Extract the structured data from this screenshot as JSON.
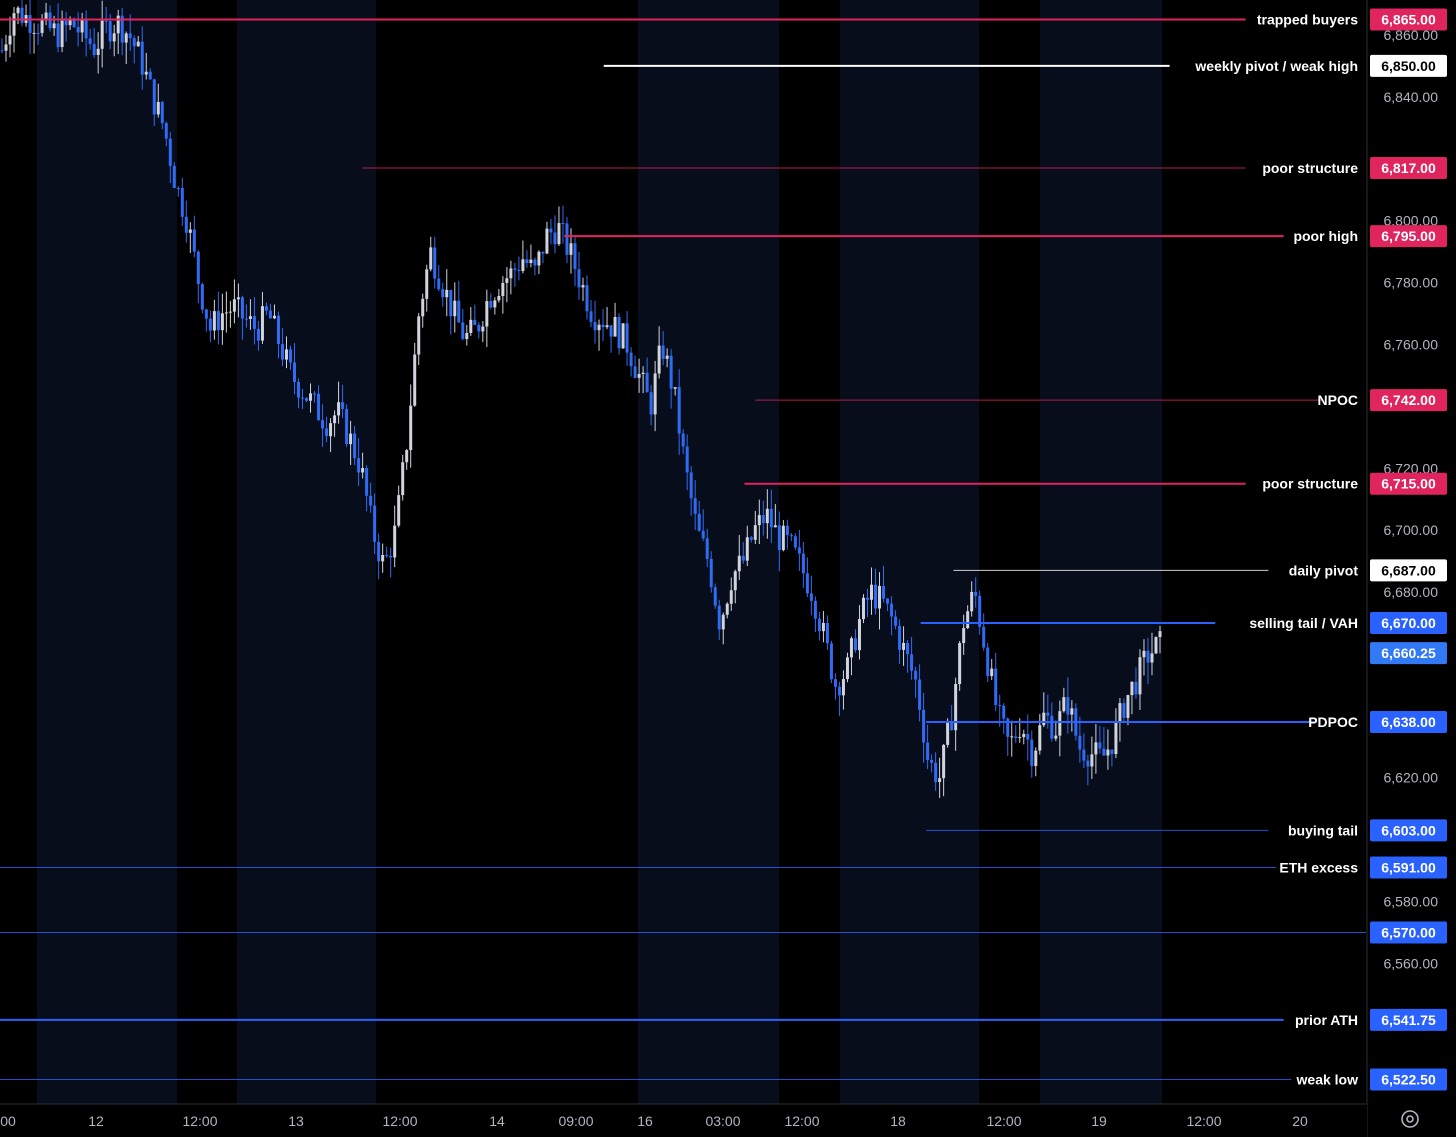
{
  "colors": {
    "background": "#000000",
    "session_band": "#070d1a",
    "up_candle": "#d1d4dc",
    "down_candle": "#2f6cf5",
    "red_level": "#e0245e",
    "blue_level": "#2962ff",
    "white_level": "#ffffff",
    "axis_text": "#b2b5be",
    "current_price": "#3179f5"
  },
  "chart_data": {
    "type": "candlestick",
    "title": "",
    "xlabel": "",
    "ylabel": "",
    "ylim": [
      6512,
      6870
    ],
    "y_ticks": [
      6860,
      6840,
      6800,
      6780,
      6760,
      6720,
      6700,
      6680,
      6620,
      6580,
      6560
    ],
    "x_ticks": [
      "00",
      "12",
      "12:00",
      "13",
      "12:00",
      "14",
      "09:00",
      "16",
      "03:00",
      "12:00",
      "18",
      "12:00",
      "19",
      "12:00",
      "20"
    ],
    "levels": [
      {
        "label": "trapped buyers",
        "price_label": "6,865.00",
        "price": 6865,
        "color": "red",
        "style": "thick",
        "start": 0.0
      },
      {
        "label": "weekly pivot / weak high",
        "price_label": "6,850.00",
        "price": 6850,
        "color": "white",
        "style": "thick",
        "start": 0.442
      },
      {
        "label": "poor structure",
        "price_label": "6,817.00",
        "price": 6817,
        "color": "red",
        "style": "thin",
        "start": 0.265
      },
      {
        "label": "poor high",
        "price_label": "6,795.00",
        "price": 6795,
        "color": "red",
        "style": "thick",
        "start": 0.413
      },
      {
        "label": "NPOC",
        "price_label": "6,742.00",
        "price": 6742,
        "color": "red",
        "style": "thin",
        "start": 0.553
      },
      {
        "label": "poor structure",
        "price_label": "6,715.00",
        "price": 6715,
        "color": "red",
        "style": "thick",
        "start": 0.545
      },
      {
        "label": "daily pivot",
        "price_label": "6,687.00",
        "price": 6687,
        "color": "white",
        "style": "thin",
        "start": 0.698
      },
      {
        "label": "selling tail / VAH",
        "price_label": "6,670.00",
        "price": 6670,
        "color": "blue",
        "style": "thick",
        "start": 0.674
      },
      {
        "label": "",
        "price_label": "6,660.25",
        "price": 6660.25,
        "color": "current",
        "style": "none",
        "start": 1.0
      },
      {
        "label": "PDPOC",
        "price_label": "6,638.00",
        "price": 6638,
        "color": "blue",
        "style": "thick",
        "start": 0.678
      },
      {
        "label": "buying tail",
        "price_label": "6,603.00",
        "price": 6603,
        "color": "blue",
        "style": "thin",
        "start": 0.678
      },
      {
        "label": "ETH excess",
        "price_label": "6,591.00",
        "price": 6591,
        "color": "blue",
        "style": "thin",
        "start": 0.0
      },
      {
        "label": "",
        "price_label": "6,570.00",
        "price": 6570,
        "color": "blue",
        "style": "thin",
        "start": 0.0
      },
      {
        "label": "prior ATH",
        "price_label": "6,541.75",
        "price": 6541.75,
        "color": "blue",
        "style": "thick",
        "start": 0.0
      },
      {
        "label": "weak low",
        "price_label": "6,522.50",
        "price": 6522.5,
        "color": "blue",
        "style": "thin",
        "start": 0.0
      }
    ],
    "close_path": [
      6855,
      6868,
      6866,
      6864,
      6862,
      6860,
      6864,
      6860,
      6856,
      6862,
      6864,
      6860,
      6852,
      6840,
      6830,
      6812,
      6800,
      6780,
      6765,
      6770,
      6772,
      6768,
      6765,
      6770,
      6760,
      6750,
      6745,
      6740,
      6735,
      6738,
      6730,
      6720,
      6700,
      6688,
      6700,
      6730,
      6770,
      6790,
      6780,
      6770,
      6762,
      6765,
      6775,
      6780,
      6783,
      6788,
      6783,
      6795,
      6798,
      6790,
      6780,
      6770,
      6768,
      6765,
      6760,
      6750,
      6740,
      6760,
      6745,
      6720,
      6700,
      6690,
      6670,
      6685,
      6690,
      6700,
      6705,
      6698,
      6695,
      6688,
      6680,
      6665,
      6650,
      6655,
      6670,
      6680,
      6677,
      6670,
      6660,
      6650,
      6625,
      6620,
      6640,
      6670,
      6680,
      6660,
      6640,
      6630,
      6638,
      6628,
      6640,
      6636,
      6645,
      6630,
      6628,
      6626,
      6633,
      6645,
      6652,
      6660,
      6663
    ]
  }
}
